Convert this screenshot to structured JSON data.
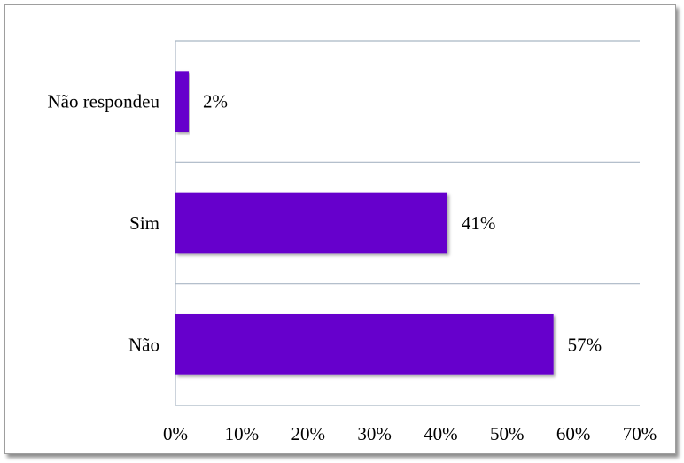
{
  "chart_data": {
    "type": "bar",
    "orientation": "horizontal",
    "title": "",
    "xlabel": "",
    "ylabel": "",
    "categories": [
      "Não respondeu",
      "Sim",
      "Não"
    ],
    "values": [
      2,
      41,
      57
    ],
    "value_labels": [
      "2%",
      "41%",
      "57%"
    ],
    "xlim": [
      0,
      70
    ],
    "x_ticks": [
      0,
      10,
      20,
      30,
      40,
      50,
      60,
      70
    ],
    "x_tick_labels": [
      "0%",
      "10%",
      "20%",
      "30%",
      "40%",
      "50%",
      "60%",
      "70%"
    ],
    "grid": true,
    "legend": "none",
    "colors": {
      "bar": "#6600CC",
      "grid": "#A9B6C4",
      "frame": "#9E9E9E"
    }
  }
}
